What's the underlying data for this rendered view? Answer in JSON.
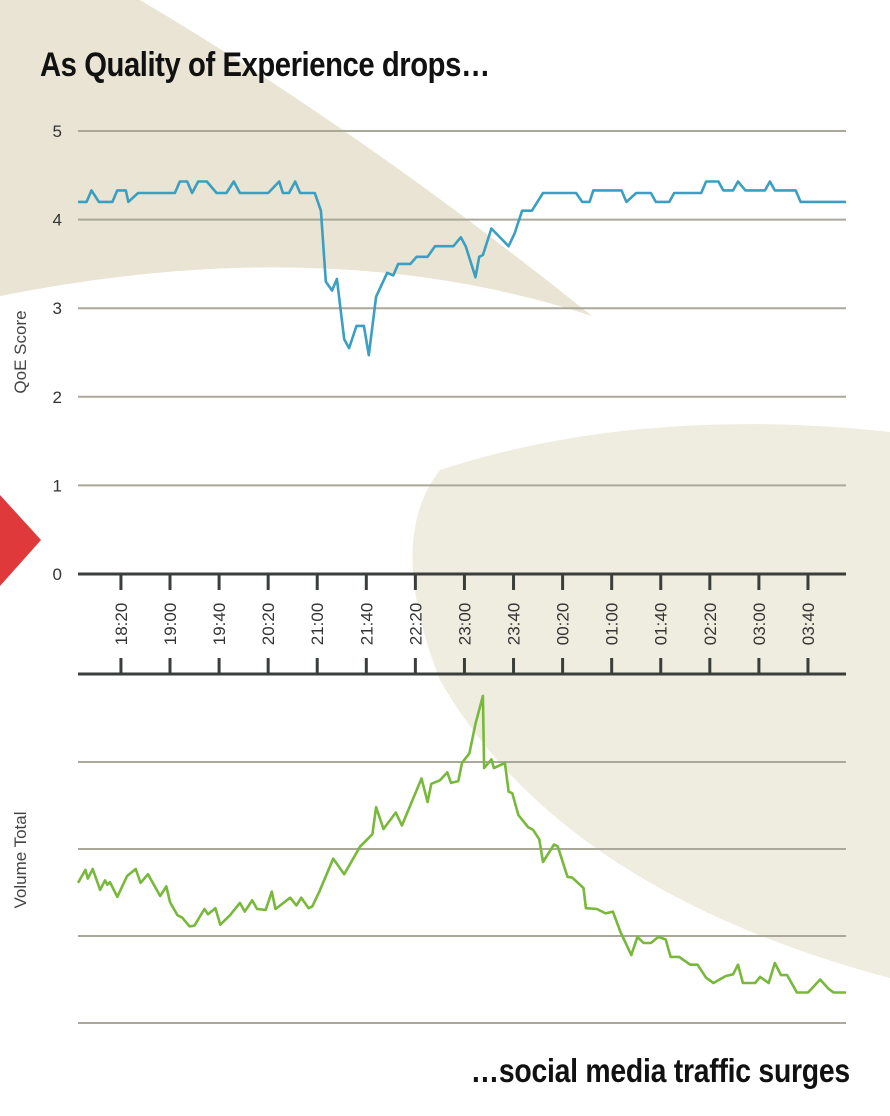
{
  "chart_data": [
    {
      "type": "line",
      "title": "As Quality of Experience drops…",
      "ylabel": "QoE Score",
      "xlabel": "",
      "ylim": [
        0,
        5
      ],
      "yticks": [
        "0",
        "1",
        "2",
        "3",
        "4",
        "5"
      ],
      "xlim_minutes_since_1745": [
        0,
        626
      ],
      "grid": true,
      "color": "#3a9fc0",
      "series": [
        {
          "name": "QoE Score",
          "x": [
            0,
            7,
            11,
            17,
            28,
            32,
            39,
            41,
            49,
            79,
            83,
            89,
            93,
            98,
            105,
            113,
            121,
            127,
            132,
            155,
            164,
            167,
            172,
            177,
            181,
            193,
            198,
            202,
            207,
            211,
            217,
            221,
            227,
            233,
            237,
            243,
            252,
            257,
            261,
            271,
            276,
            285,
            291,
            306,
            312,
            316,
            324,
            327,
            330,
            337,
            351,
            356,
            362,
            370,
            379,
            406,
            411,
            417,
            420,
            443,
            447,
            455,
            467,
            471,
            482,
            486,
            508,
            512,
            522,
            526,
            534,
            538,
            544,
            560,
            564,
            568,
            585,
            589,
            626
          ],
          "values": [
            4.2,
            4.2,
            4.33,
            4.2,
            4.2,
            4.33,
            4.33,
            4.2,
            4.3,
            4.3,
            4.43,
            4.43,
            4.3,
            4.43,
            4.43,
            4.3,
            4.3,
            4.43,
            4.3,
            4.3,
            4.43,
            4.3,
            4.3,
            4.43,
            4.3,
            4.3,
            4.1,
            3.3,
            3.2,
            3.33,
            2.65,
            2.55,
            2.8,
            2.8,
            2.47,
            3.13,
            3.4,
            3.37,
            3.5,
            3.5,
            3.58,
            3.58,
            3.7,
            3.7,
            3.8,
            3.7,
            3.35,
            3.58,
            3.6,
            3.9,
            3.7,
            3.85,
            4.1,
            4.1,
            4.3,
            4.3,
            4.2,
            4.2,
            4.33,
            4.33,
            4.2,
            4.3,
            4.3,
            4.2,
            4.2,
            4.3,
            4.3,
            4.43,
            4.43,
            4.33,
            4.33,
            4.43,
            4.33,
            4.33,
            4.43,
            4.33,
            4.33,
            4.2,
            4.2
          ]
        }
      ]
    },
    {
      "type": "line",
      "title": "…social media traffic surges",
      "ylabel": "Volume Total",
      "ylim": [
        0,
        4
      ],
      "grid": true,
      "color": "#78b83a",
      "series": [
        {
          "name": "Volume Total",
          "x": [
            0,
            6,
            8,
            12,
            18,
            22,
            24,
            26,
            32,
            40,
            47,
            51,
            57,
            67,
            72,
            75,
            81,
            85,
            91,
            95,
            103,
            106,
            112,
            116,
            124,
            132,
            136,
            142,
            146,
            153,
            158,
            161,
            173,
            178,
            182,
            188,
            191,
            197,
            208,
            217,
            230,
            240,
            243,
            249,
            259,
            264,
            280,
            285,
            288,
            295,
            301,
            304,
            310,
            313,
            319,
            324,
            330,
            331,
            337,
            339,
            348,
            351,
            354,
            359,
            367,
            371,
            376,
            379,
            388,
            391,
            399,
            403,
            412,
            414,
            423,
            430,
            436,
            442,
            451,
            456,
            461,
            467,
            473,
            479,
            483,
            490,
            499,
            505,
            512,
            518,
            528,
            534,
            538,
            542,
            552,
            556,
            563,
            568,
            573,
            578,
            586,
            595,
            605,
            612,
            616,
            626
          ],
          "values": [
            1.61,
            1.76,
            1.66,
            1.77,
            1.53,
            1.64,
            1.59,
            1.62,
            1.45,
            1.69,
            1.77,
            1.61,
            1.71,
            1.46,
            1.57,
            1.39,
            1.24,
            1.21,
            1.11,
            1.12,
            1.31,
            1.25,
            1.32,
            1.13,
            1.24,
            1.38,
            1.28,
            1.41,
            1.31,
            1.3,
            1.51,
            1.31,
            1.44,
            1.35,
            1.44,
            1.32,
            1.34,
            1.52,
            1.89,
            1.71,
            2.03,
            2.17,
            2.48,
            2.23,
            2.42,
            2.27,
            2.81,
            2.54,
            2.75,
            2.79,
            2.88,
            2.76,
            2.78,
            2.99,
            3.1,
            3.44,
            3.76,
            2.93,
            3.03,
            2.93,
            2.99,
            2.66,
            2.64,
            2.39,
            2.25,
            2.22,
            2.11,
            1.85,
            2.05,
            2.03,
            1.68,
            1.67,
            1.55,
            1.32,
            1.31,
            1.26,
            1.28,
            1.05,
            0.78,
            0.99,
            0.92,
            0.92,
            0.99,
            0.96,
            0.76,
            0.76,
            0.67,
            0.67,
            0.52,
            0.46,
            0.54,
            0.56,
            0.67,
            0.46,
            0.46,
            0.53,
            0.46,
            0.69,
            0.55,
            0.55,
            0.35,
            0.35,
            0.5,
            0.39,
            0.35,
            0.35
          ]
        }
      ]
    }
  ],
  "x_axis": {
    "tick_minutes_since_1745": [
      35,
      75,
      115,
      155,
      195,
      235,
      275,
      315,
      355,
      395,
      435,
      475,
      515,
      555,
      595
    ],
    "tick_labels": [
      "18:20",
      "19:00",
      "19:40",
      "20:20",
      "21:00",
      "21:40",
      "22:20",
      "23:00",
      "23:40",
      "00:20",
      "01:00",
      "01:40",
      "02:20",
      "03:00",
      "03:40"
    ]
  },
  "colors": {
    "background_shape": "#e9e4d3",
    "background_shape_light": "#efece0",
    "marker": "#e0393b",
    "grid": "#aaa898",
    "axis": "#3a3f3c"
  }
}
